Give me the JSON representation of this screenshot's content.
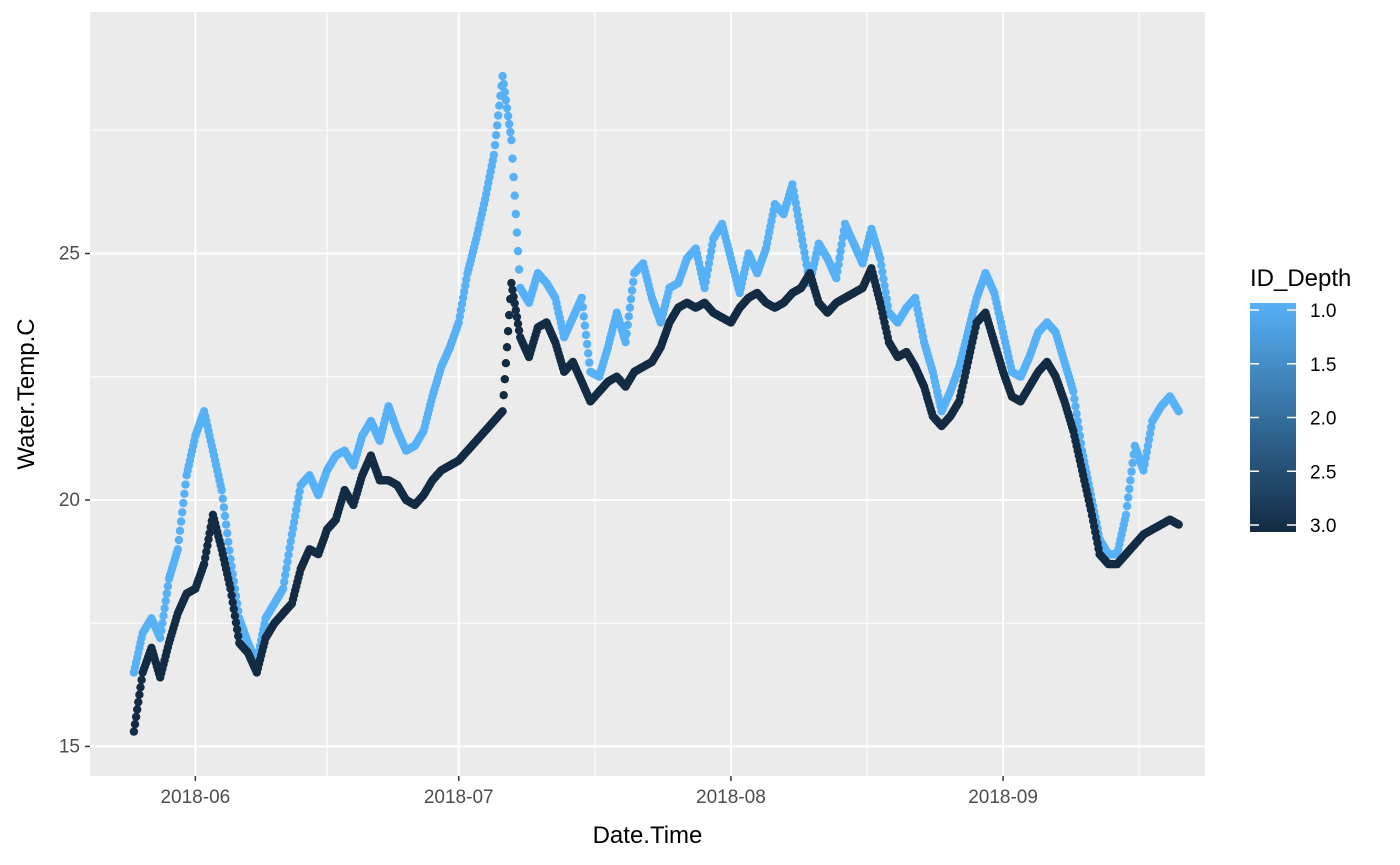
{
  "chart_data": {
    "type": "scatter",
    "xlabel": "Date.Time",
    "ylabel": "Water.Temp.C",
    "xlim": [
      "2018-05-20",
      "2018-09-24"
    ],
    "ylim": [
      14.4,
      29.9
    ],
    "x_ticks": [
      "2018-06-01",
      "2018-07-01",
      "2018-08-01",
      "2018-09-01"
    ],
    "x_tick_labels": [
      "2018-06",
      "2018-07",
      "2018-08",
      "2018-09"
    ],
    "y_ticks": [
      15,
      20,
      25
    ],
    "y_tick_labels": [
      "15",
      "20",
      "25"
    ],
    "grid": true,
    "legend": {
      "title": "ID_Depth",
      "placement": "right",
      "labels": [
        "1.0",
        "1.5",
        "2.0",
        "2.5",
        "3.0"
      ],
      "range": [
        1.0,
        3.0
      ],
      "color_low": "#56B1F7",
      "color_high": "#132B43"
    },
    "series": [
      {
        "depth": 1.0,
        "color": "#56B1F7",
        "points": [
          [
            "2018-05-25",
            16.5
          ],
          [
            "2018-05-26",
            17.3
          ],
          [
            "2018-05-27",
            17.6
          ],
          [
            "2018-05-28",
            17.2
          ],
          [
            "2018-05-29",
            18.4
          ],
          [
            "2018-05-30",
            19.0
          ],
          [
            "2018-05-31",
            20.5
          ],
          [
            "2018-06-01",
            21.3
          ],
          [
            "2018-06-02",
            21.8
          ],
          [
            "2018-06-03",
            21.0
          ],
          [
            "2018-06-04",
            20.2
          ],
          [
            "2018-06-05",
            18.8
          ],
          [
            "2018-06-06",
            17.6
          ],
          [
            "2018-06-07",
            17.1
          ],
          [
            "2018-06-08",
            16.7
          ],
          [
            "2018-06-09",
            17.6
          ],
          [
            "2018-06-10",
            17.9
          ],
          [
            "2018-06-11",
            18.2
          ],
          [
            "2018-06-12",
            19.3
          ],
          [
            "2018-06-13",
            20.3
          ],
          [
            "2018-06-14",
            20.5
          ],
          [
            "2018-06-15",
            20.1
          ],
          [
            "2018-06-16",
            20.6
          ],
          [
            "2018-06-17",
            20.9
          ],
          [
            "2018-06-18",
            21.0
          ],
          [
            "2018-06-19",
            20.7
          ],
          [
            "2018-06-20",
            21.3
          ],
          [
            "2018-06-21",
            21.6
          ],
          [
            "2018-06-22",
            21.2
          ],
          [
            "2018-06-23",
            21.9
          ],
          [
            "2018-06-24",
            21.4
          ],
          [
            "2018-06-25",
            21.0
          ],
          [
            "2018-06-26",
            21.1
          ],
          [
            "2018-06-27",
            21.4
          ],
          [
            "2018-06-28",
            22.1
          ],
          [
            "2018-06-29",
            22.7
          ],
          [
            "2018-06-30",
            23.1
          ],
          [
            "2018-07-01",
            23.6
          ],
          [
            "2018-07-02",
            24.6
          ],
          [
            "2018-07-03",
            25.3
          ],
          [
            "2018-07-04",
            26.1
          ],
          [
            "2018-07-05",
            27.0
          ],
          [
            "2018-07-06",
            28.6
          ],
          [
            "2018-07-07",
            27.3
          ],
          [
            "2018-07-08",
            24.3
          ],
          [
            "2018-07-09",
            24.0
          ],
          [
            "2018-07-10",
            24.6
          ],
          [
            "2018-07-11",
            24.4
          ],
          [
            "2018-07-12",
            24.1
          ],
          [
            "2018-07-13",
            23.3
          ],
          [
            "2018-07-14",
            23.7
          ],
          [
            "2018-07-15",
            24.1
          ],
          [
            "2018-07-16",
            22.6
          ],
          [
            "2018-07-17",
            22.5
          ],
          [
            "2018-07-18",
            23.1
          ],
          [
            "2018-07-19",
            23.8
          ],
          [
            "2018-07-20",
            23.2
          ],
          [
            "2018-07-21",
            24.6
          ],
          [
            "2018-07-22",
            24.8
          ],
          [
            "2018-07-23",
            24.1
          ],
          [
            "2018-07-24",
            23.6
          ],
          [
            "2018-07-25",
            24.3
          ],
          [
            "2018-07-26",
            24.4
          ],
          [
            "2018-07-27",
            24.9
          ],
          [
            "2018-07-28",
            25.1
          ],
          [
            "2018-07-29",
            24.3
          ],
          [
            "2018-07-30",
            25.3
          ],
          [
            "2018-07-31",
            25.6
          ],
          [
            "2018-08-01",
            24.9
          ],
          [
            "2018-08-02",
            24.2
          ],
          [
            "2018-08-03",
            25.0
          ],
          [
            "2018-08-04",
            24.6
          ],
          [
            "2018-08-05",
            25.1
          ],
          [
            "2018-08-06",
            26.0
          ],
          [
            "2018-08-07",
            25.8
          ],
          [
            "2018-08-08",
            26.4
          ],
          [
            "2018-08-09",
            25.4
          ],
          [
            "2018-08-10",
            24.4
          ],
          [
            "2018-08-11",
            25.2
          ],
          [
            "2018-08-12",
            24.9
          ],
          [
            "2018-08-13",
            24.5
          ],
          [
            "2018-08-14",
            25.6
          ],
          [
            "2018-08-15",
            25.2
          ],
          [
            "2018-08-16",
            24.8
          ],
          [
            "2018-08-17",
            25.5
          ],
          [
            "2018-08-18",
            24.9
          ],
          [
            "2018-08-19",
            23.8
          ],
          [
            "2018-08-20",
            23.6
          ],
          [
            "2018-08-21",
            23.9
          ],
          [
            "2018-08-22",
            24.1
          ],
          [
            "2018-08-23",
            23.2
          ],
          [
            "2018-08-24",
            22.6
          ],
          [
            "2018-08-25",
            21.8
          ],
          [
            "2018-08-26",
            22.2
          ],
          [
            "2018-08-27",
            22.7
          ],
          [
            "2018-08-28",
            23.4
          ],
          [
            "2018-08-29",
            24.1
          ],
          [
            "2018-08-30",
            24.6
          ],
          [
            "2018-08-31",
            24.2
          ],
          [
            "2018-09-01",
            23.4
          ],
          [
            "2018-09-02",
            22.6
          ],
          [
            "2018-09-03",
            22.5
          ],
          [
            "2018-09-04",
            22.9
          ],
          [
            "2018-09-05",
            23.4
          ],
          [
            "2018-09-06",
            23.6
          ],
          [
            "2018-09-07",
            23.4
          ],
          [
            "2018-09-08",
            22.8
          ],
          [
            "2018-09-09",
            22.2
          ],
          [
            "2018-09-10",
            21.0
          ],
          [
            "2018-09-11",
            20.1
          ],
          [
            "2018-09-12",
            19.2
          ],
          [
            "2018-09-13",
            18.9
          ],
          [
            "2018-09-14",
            18.9
          ],
          [
            "2018-09-15",
            19.7
          ],
          [
            "2018-09-16",
            21.1
          ],
          [
            "2018-09-17",
            20.6
          ],
          [
            "2018-09-18",
            21.6
          ],
          [
            "2018-09-19",
            21.9
          ],
          [
            "2018-09-20",
            22.1
          ],
          [
            "2018-09-21",
            21.8
          ]
        ]
      },
      {
        "depth": 3.0,
        "color": "#132B43",
        "points": [
          [
            "2018-05-25",
            15.3
          ],
          [
            "2018-05-26",
            16.5
          ],
          [
            "2018-05-27",
            17.0
          ],
          [
            "2018-05-28",
            16.4
          ],
          [
            "2018-05-29",
            17.1
          ],
          [
            "2018-05-30",
            17.7
          ],
          [
            "2018-05-31",
            18.1
          ],
          [
            "2018-06-01",
            18.2
          ],
          [
            "2018-06-02",
            18.7
          ],
          [
            "2018-06-03",
            19.7
          ],
          [
            "2018-06-04",
            19.0
          ],
          [
            "2018-06-05",
            18.2
          ],
          [
            "2018-06-06",
            17.1
          ],
          [
            "2018-06-07",
            16.9
          ],
          [
            "2018-06-08",
            16.5
          ],
          [
            "2018-06-09",
            17.2
          ],
          [
            "2018-06-10",
            17.5
          ],
          [
            "2018-06-11",
            17.7
          ],
          [
            "2018-06-12",
            17.9
          ],
          [
            "2018-06-13",
            18.6
          ],
          [
            "2018-06-14",
            19.0
          ],
          [
            "2018-06-15",
            18.9
          ],
          [
            "2018-06-16",
            19.4
          ],
          [
            "2018-06-17",
            19.6
          ],
          [
            "2018-06-18",
            20.2
          ],
          [
            "2018-06-19",
            19.9
          ],
          [
            "2018-06-20",
            20.5
          ],
          [
            "2018-06-21",
            20.9
          ],
          [
            "2018-06-22",
            20.4
          ],
          [
            "2018-06-23",
            20.4
          ],
          [
            "2018-06-24",
            20.3
          ],
          [
            "2018-06-25",
            20.0
          ],
          [
            "2018-06-26",
            19.9
          ],
          [
            "2018-06-27",
            20.1
          ],
          [
            "2018-06-28",
            20.4
          ],
          [
            "2018-06-29",
            20.6
          ],
          [
            "2018-06-30",
            20.7
          ],
          [
            "2018-07-01",
            20.8
          ],
          [
            "2018-07-02",
            21.0
          ],
          [
            "2018-07-03",
            21.2
          ],
          [
            "2018-07-04",
            21.4
          ],
          [
            "2018-07-05",
            21.6
          ],
          [
            "2018-07-06",
            21.8
          ],
          [
            "2018-07-07",
            24.4
          ],
          [
            "2018-07-08",
            23.3
          ],
          [
            "2018-07-09",
            22.9
          ],
          [
            "2018-07-10",
            23.5
          ],
          [
            "2018-07-11",
            23.6
          ],
          [
            "2018-07-12",
            23.2
          ],
          [
            "2018-07-13",
            22.6
          ],
          [
            "2018-07-14",
            22.8
          ],
          [
            "2018-07-15",
            22.4
          ],
          [
            "2018-07-16",
            22.0
          ],
          [
            "2018-07-17",
            22.2
          ],
          [
            "2018-07-18",
            22.4
          ],
          [
            "2018-07-19",
            22.5
          ],
          [
            "2018-07-20",
            22.3
          ],
          [
            "2018-07-21",
            22.6
          ],
          [
            "2018-07-22",
            22.7
          ],
          [
            "2018-07-23",
            22.8
          ],
          [
            "2018-07-24",
            23.1
          ],
          [
            "2018-07-25",
            23.6
          ],
          [
            "2018-07-26",
            23.9
          ],
          [
            "2018-07-27",
            24.0
          ],
          [
            "2018-07-28",
            23.9
          ],
          [
            "2018-07-29",
            24.0
          ],
          [
            "2018-07-30",
            23.8
          ],
          [
            "2018-07-31",
            23.7
          ],
          [
            "2018-08-01",
            23.6
          ],
          [
            "2018-08-02",
            23.9
          ],
          [
            "2018-08-03",
            24.1
          ],
          [
            "2018-08-04",
            24.2
          ],
          [
            "2018-08-05",
            24.0
          ],
          [
            "2018-08-06",
            23.9
          ],
          [
            "2018-08-07",
            24.0
          ],
          [
            "2018-08-08",
            24.2
          ],
          [
            "2018-08-09",
            24.3
          ],
          [
            "2018-08-10",
            24.6
          ],
          [
            "2018-08-11",
            24.0
          ],
          [
            "2018-08-12",
            23.8
          ],
          [
            "2018-08-13",
            24.0
          ],
          [
            "2018-08-14",
            24.1
          ],
          [
            "2018-08-15",
            24.2
          ],
          [
            "2018-08-16",
            24.3
          ],
          [
            "2018-08-17",
            24.7
          ],
          [
            "2018-08-18",
            24.0
          ],
          [
            "2018-08-19",
            23.2
          ],
          [
            "2018-08-20",
            22.9
          ],
          [
            "2018-08-21",
            23.0
          ],
          [
            "2018-08-22",
            22.7
          ],
          [
            "2018-08-23",
            22.3
          ],
          [
            "2018-08-24",
            21.7
          ],
          [
            "2018-08-25",
            21.5
          ],
          [
            "2018-08-26",
            21.7
          ],
          [
            "2018-08-27",
            22.0
          ],
          [
            "2018-08-28",
            22.8
          ],
          [
            "2018-08-29",
            23.6
          ],
          [
            "2018-08-30",
            23.8
          ],
          [
            "2018-08-31",
            23.2
          ],
          [
            "2018-09-01",
            22.6
          ],
          [
            "2018-09-02",
            22.1
          ],
          [
            "2018-09-03",
            22.0
          ],
          [
            "2018-09-04",
            22.3
          ],
          [
            "2018-09-05",
            22.6
          ],
          [
            "2018-09-06",
            22.8
          ],
          [
            "2018-09-07",
            22.5
          ],
          [
            "2018-09-08",
            22.0
          ],
          [
            "2018-09-09",
            21.4
          ],
          [
            "2018-09-10",
            20.6
          ],
          [
            "2018-09-11",
            19.8
          ],
          [
            "2018-09-12",
            18.9
          ],
          [
            "2018-09-13",
            18.7
          ],
          [
            "2018-09-14",
            18.7
          ],
          [
            "2018-09-15",
            18.9
          ],
          [
            "2018-09-16",
            19.1
          ],
          [
            "2018-09-17",
            19.3
          ],
          [
            "2018-09-18",
            19.4
          ],
          [
            "2018-09-19",
            19.5
          ],
          [
            "2018-09-20",
            19.6
          ],
          [
            "2018-09-21",
            19.5
          ]
        ]
      }
    ]
  }
}
